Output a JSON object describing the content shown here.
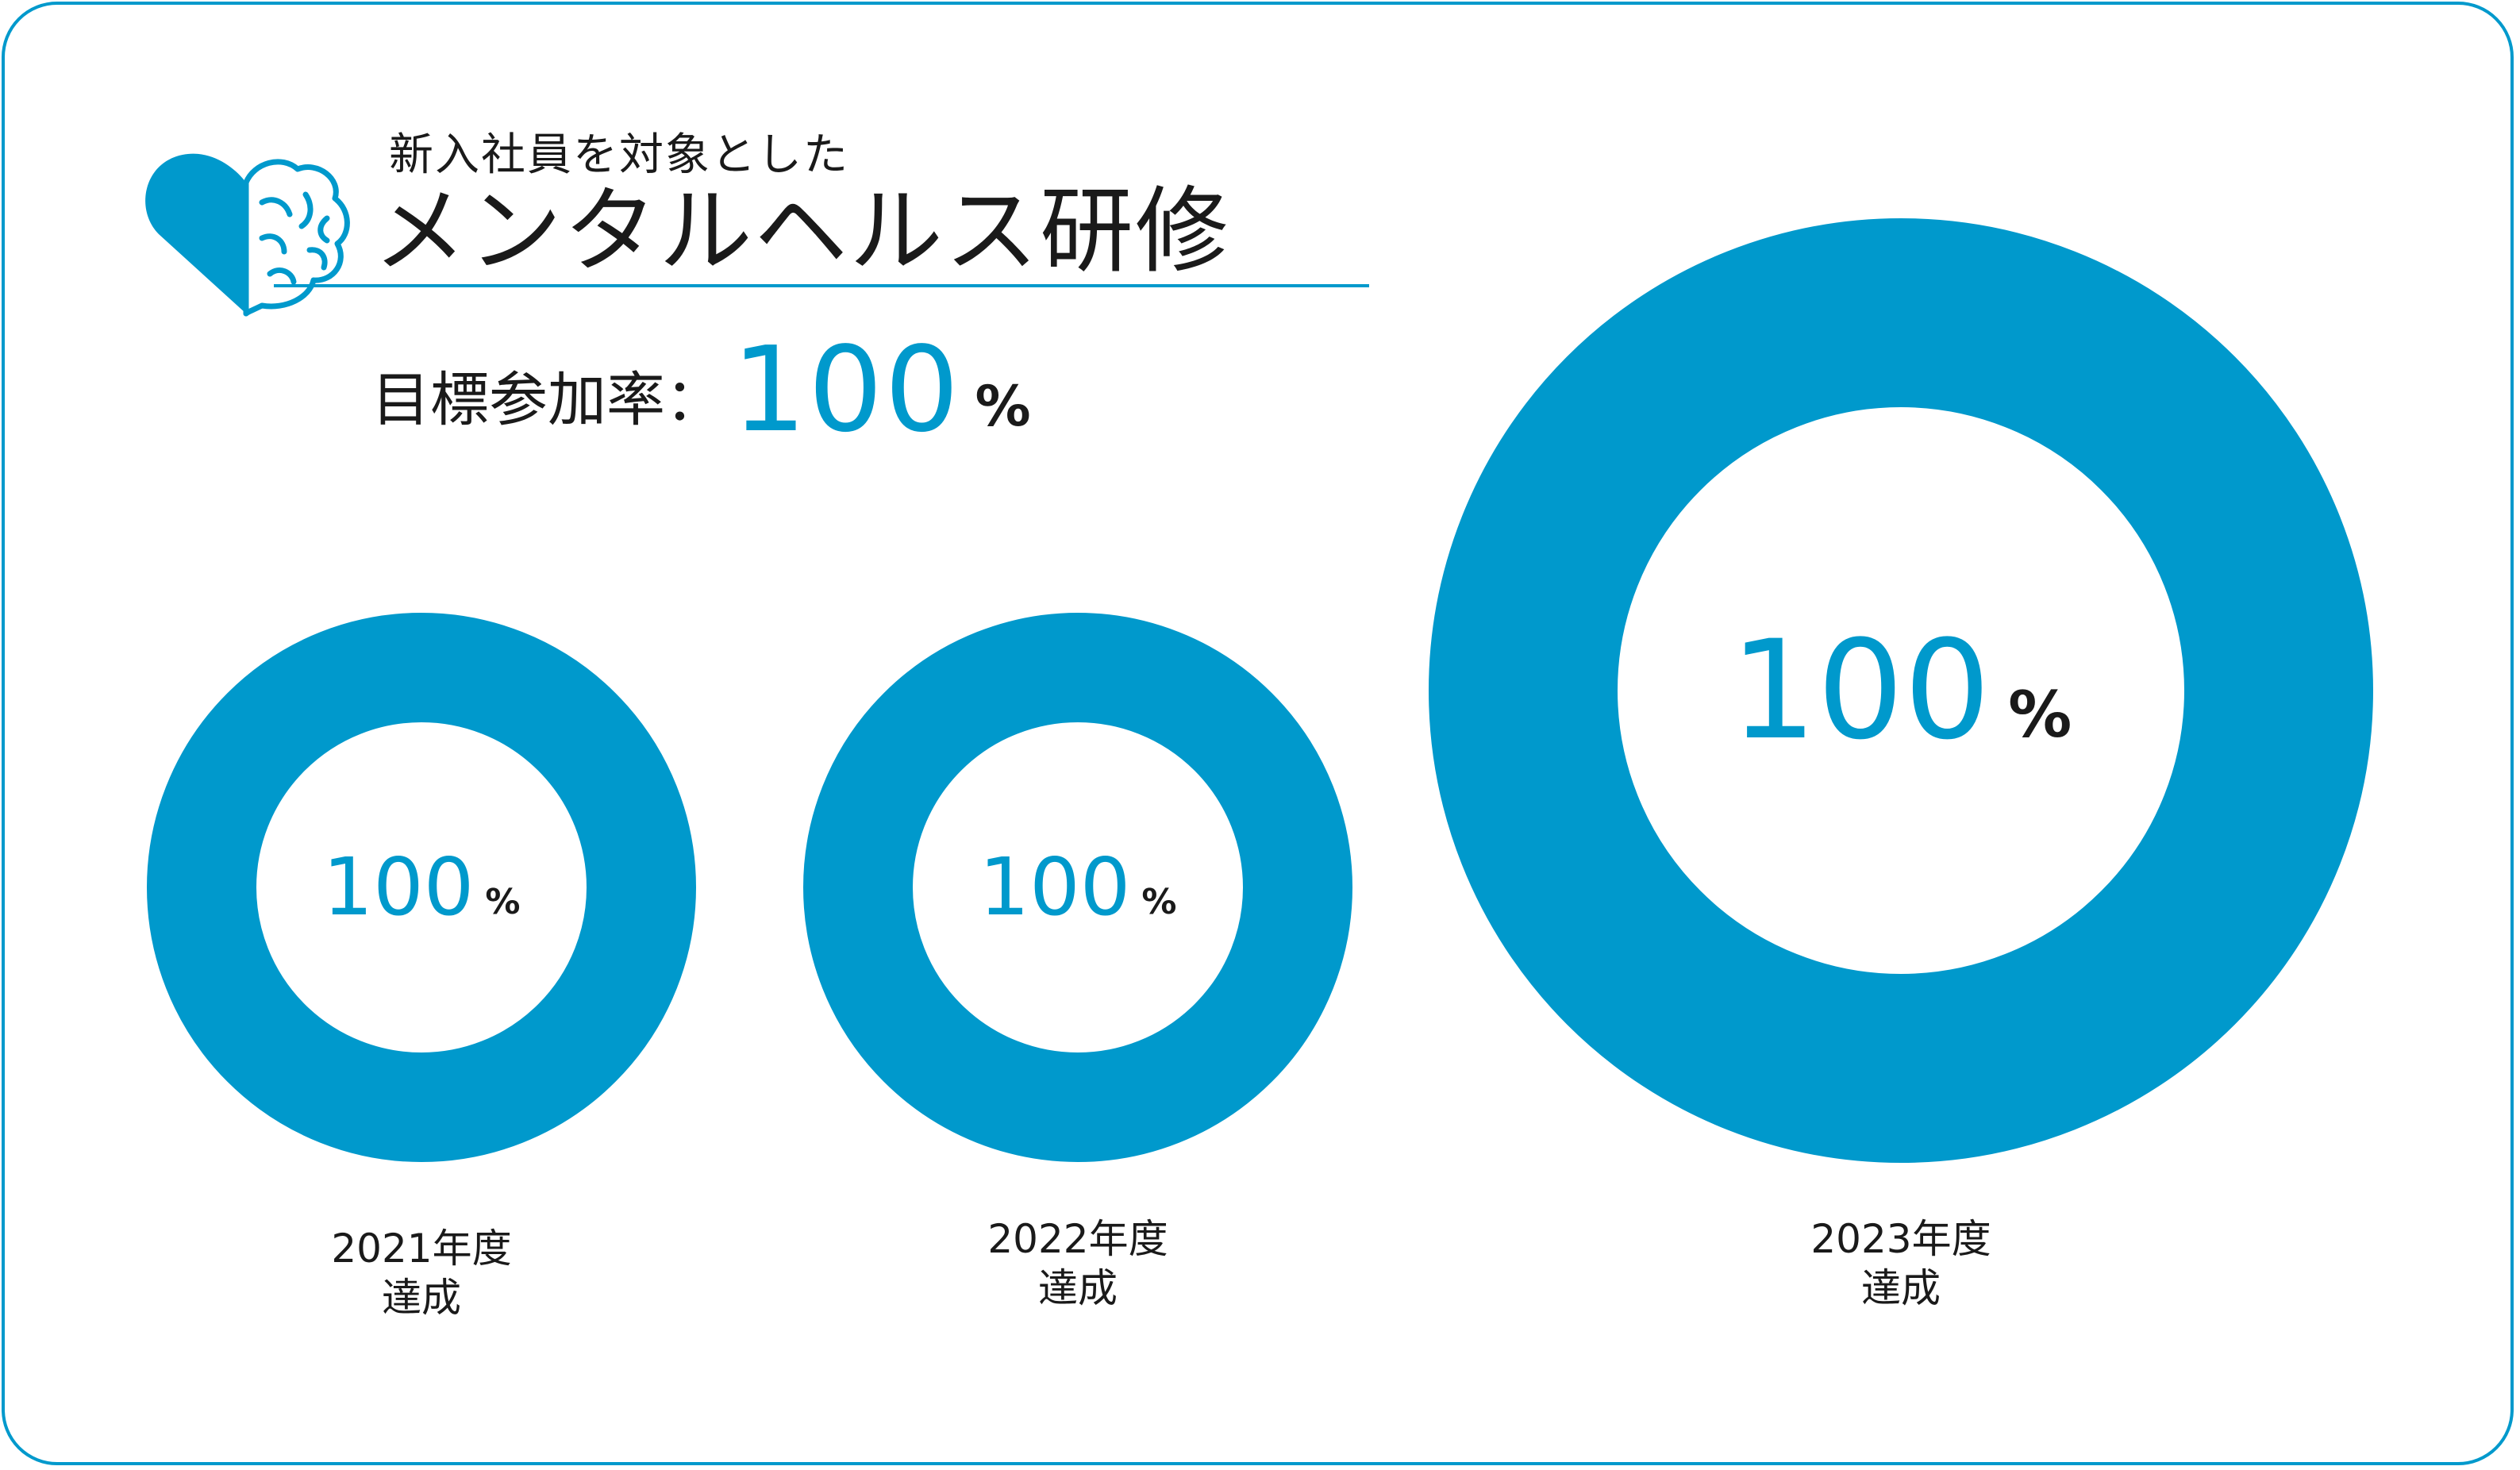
{
  "header": {
    "subtitle": "新入社員を対象とした",
    "title": "メンタルヘルス研修",
    "logo_icon": "heart-brain-icon"
  },
  "target": {
    "label": "目標参加率：",
    "value": "100",
    "unit": "%"
  },
  "colors": {
    "accent": "#0099cc",
    "text": "#1a1a1a",
    "background": "#ffffff"
  },
  "chart_data": {
    "type": "pie",
    "subtype": "donut",
    "title": "",
    "unit": "%",
    "items": [
      {
        "label_year": "2021年度",
        "label_status": "達成",
        "value": 100,
        "value_label": "100"
      },
      {
        "label_year": "2022年度",
        "label_status": "達成",
        "value": 100,
        "value_label": "100"
      },
      {
        "label_year": "2023年度",
        "label_status": "達成",
        "value": 100,
        "value_label": "100"
      }
    ]
  }
}
